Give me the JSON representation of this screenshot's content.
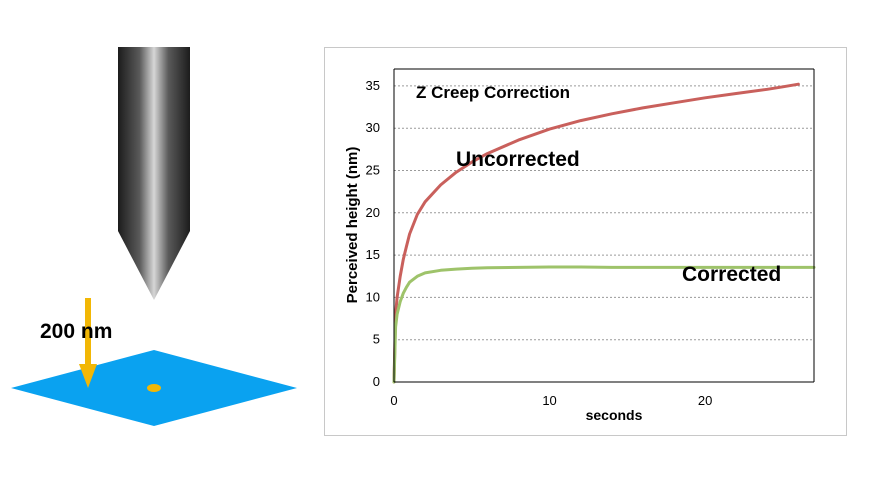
{
  "illustration": {
    "scale_label": "200 nm",
    "colors": {
      "sample": "#0aa2f0",
      "arrow": "#f2b705",
      "dot": "#f2b705"
    }
  },
  "chart_data": {
    "type": "line",
    "title": "Z Creep Correction",
    "xlabel": "seconds",
    "ylabel": "Perceived height (nm)",
    "xlim": [
      0,
      27
    ],
    "ylim": [
      0,
      37
    ],
    "xticks": [
      0,
      10,
      20
    ],
    "yticks": [
      0,
      5,
      10,
      15,
      20,
      25,
      30,
      35
    ],
    "grid": "horizontal dashed",
    "series": [
      {
        "name": "Uncorrected",
        "color": "#c9605c",
        "x": [
          0,
          0.1,
          0.2,
          0.4,
          0.6,
          0.8,
          1,
          1.5,
          2,
          3,
          4,
          5,
          6,
          8,
          10,
          12,
          14,
          16,
          18,
          20,
          22,
          24,
          25,
          26
        ],
        "values": [
          0,
          8,
          10,
          12.5,
          14.5,
          16,
          17.5,
          19.8,
          21.3,
          23.3,
          24.8,
          26,
          27,
          28.6,
          29.9,
          30.9,
          31.7,
          32.4,
          33,
          33.6,
          34.1,
          34.6,
          34.9,
          35.2
        ]
      },
      {
        "name": "Corrected",
        "color": "#9ec36a",
        "x": [
          0,
          0.1,
          0.2,
          0.4,
          0.6,
          0.8,
          1,
          1.5,
          2,
          3,
          4,
          5,
          6,
          8,
          10,
          12,
          14,
          16,
          18,
          20,
          22,
          24,
          26,
          27
        ],
        "values": [
          0,
          6.5,
          8,
          9.5,
          10.5,
          11.2,
          11.8,
          12.5,
          12.9,
          13.2,
          13.35,
          13.45,
          13.5,
          13.55,
          13.6,
          13.6,
          13.55,
          13.55,
          13.55,
          13.55,
          13.55,
          13.55,
          13.55,
          13.55
        ]
      }
    ]
  }
}
